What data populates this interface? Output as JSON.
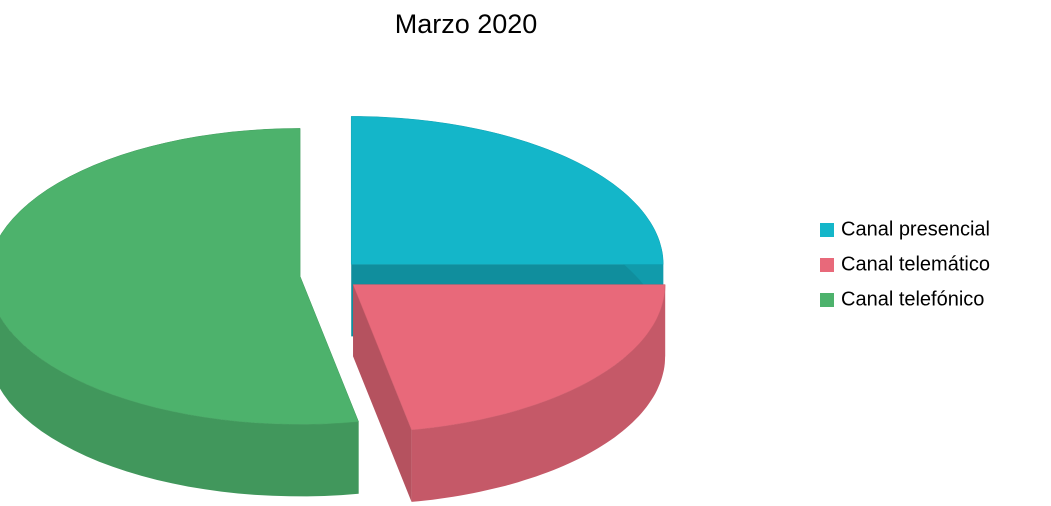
{
  "chart_data": {
    "type": "pie",
    "title": "Marzo 2020",
    "categories": [
      "Canal presencial",
      "Canal telemático",
      "Canal telefónico"
    ],
    "values": [
      25,
      22,
      53
    ],
    "colors": [
      "#14b6c9",
      "#e8697a",
      "#4db26c"
    ],
    "legend": "right"
  }
}
